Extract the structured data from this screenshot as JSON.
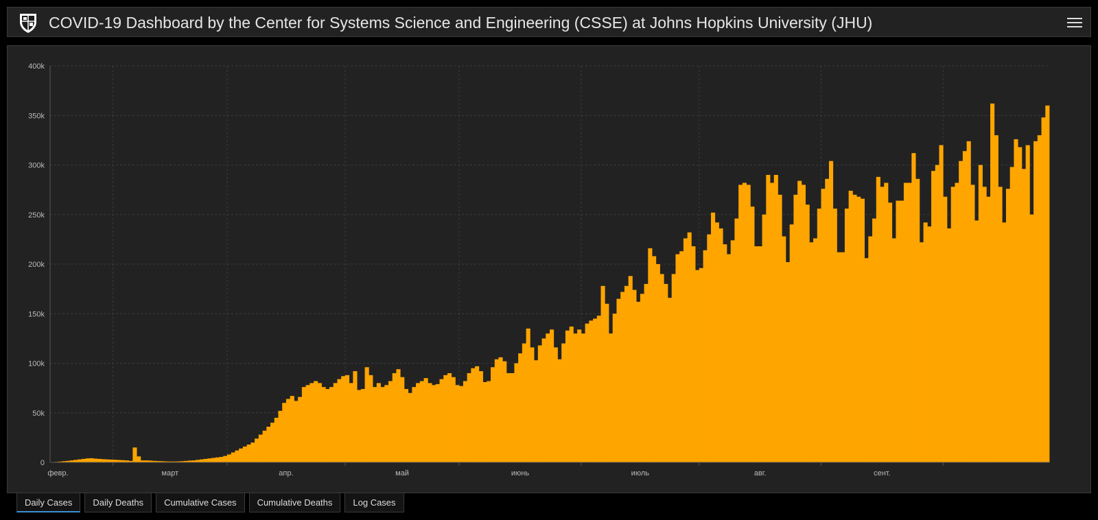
{
  "header": {
    "title": "COVID-19 Dashboard by the Center for Systems Science and Engineering (CSSE) at Johns Hopkins University (JHU)"
  },
  "colors": {
    "bar": "#ffa500",
    "background": "#222222",
    "page": "#000000",
    "grid": "#3c3c3c",
    "axis": "#555555",
    "tick_text": "#bbbbbb",
    "tab_active_underline": "#3c8fd8"
  },
  "icons": {
    "logo": "jhu-shield-icon",
    "menu": "hamburger-menu-icon"
  },
  "tabs": [
    {
      "label": "Daily Cases",
      "active": true
    },
    {
      "label": "Daily Deaths",
      "active": false
    },
    {
      "label": "Cumulative Cases",
      "active": false
    },
    {
      "label": "Cumulative Deaths",
      "active": false
    },
    {
      "label": "Log Cases",
      "active": false
    }
  ],
  "chart_data": {
    "type": "bar",
    "title": "",
    "xlabel": "",
    "ylabel": "",
    "ylim": [
      0,
      400000
    ],
    "y_ticks": [
      0,
      50000,
      100000,
      150000,
      200000,
      250000,
      300000,
      350000,
      400000
    ],
    "y_tick_labels": [
      "0",
      "50k",
      "100k",
      "150k",
      "200k",
      "250k",
      "300k",
      "350k",
      "400k"
    ],
    "x_tick_labels": [
      "февр.",
      "март",
      "апр.",
      "май",
      "июнь",
      "июль",
      "авг.",
      "сент."
    ],
    "x_tick_positions": [
      16,
      45,
      75,
      104,
      135,
      165,
      196,
      227
    ],
    "grid": true,
    "legend": "none",
    "series": [
      {
        "values": [
          300,
          500,
          800,
          1200,
          1500,
          2000,
          2500,
          3000,
          3500,
          4000,
          4200,
          3800,
          3500,
          3200,
          3000,
          2800,
          2600,
          2400,
          2200,
          2000,
          1500,
          15000,
          6000,
          2000,
          2000,
          1800,
          1500,
          1300,
          1200,
          1000,
          900,
          900,
          1000,
          1200,
          1500,
          1800,
          2000,
          2500,
          3000,
          3500,
          4000,
          4500,
          5000,
          5500,
          6500,
          8000,
          10000,
          12000,
          14000,
          16000,
          18000,
          20000,
          24000,
          28000,
          32000,
          36000,
          40000,
          45000,
          52000,
          60000,
          64000,
          67000,
          62000,
          66000,
          76000,
          78000,
          80000,
          82000,
          80000,
          76000,
          74000,
          76000,
          80000,
          84000,
          87000,
          88000,
          80000,
          92000,
          73000,
          74000,
          96000,
          88000,
          76000,
          80000,
          76000,
          78000,
          82000,
          90000,
          94000,
          86000,
          74000,
          70000,
          76000,
          80000,
          82000,
          85000,
          80000,
          78000,
          79000,
          84000,
          88000,
          90000,
          86000,
          78000,
          77000,
          82000,
          90000,
          95000,
          97000,
          92000,
          81000,
          82000,
          96000,
          104000,
          106000,
          102000,
          90000,
          90000,
          100000,
          110000,
          120000,
          135000,
          116000,
          103000,
          118000,
          125000,
          130000,
          134000,
          116000,
          104000,
          120000,
          133000,
          137000,
          130000,
          134000,
          130000,
          140000,
          143000,
          145000,
          148000,
          178000,
          160000,
          130000,
          150000,
          165000,
          172000,
          178000,
          188000,
          174000,
          162000,
          170000,
          180000,
          216000,
          208000,
          200000,
          190000,
          180000,
          166000,
          190000,
          210000,
          213000,
          226000,
          232000,
          218000,
          194000,
          196000,
          214000,
          230000,
          252000,
          242000,
          236000,
          220000,
          210000,
          224000,
          246000,
          280000,
          282000,
          280000,
          258000,
          218000,
          218000,
          250000,
          290000,
          282000,
          290000,
          270000,
          228000,
          202000,
          240000,
          270000,
          284000,
          280000,
          260000,
          222000,
          226000,
          256000,
          276000,
          286000,
          304000,
          256000,
          212000,
          212000,
          256000,
          274000,
          270000,
          268000,
          266000,
          206000,
          228000,
          246000,
          288000,
          278000,
          282000,
          262000,
          226000,
          264000,
          264000,
          282000,
          282000,
          312000,
          286000,
          222000,
          242000,
          238000,
          294000,
          300000,
          320000,
          268000,
          236000,
          278000,
          282000,
          304000,
          314000,
          324000,
          280000,
          244000,
          300000,
          278000,
          268000,
          362000,
          330000,
          278000,
          242000,
          276000,
          298000,
          326000,
          318000,
          296000,
          320000,
          250000,
          324000,
          330000,
          348000,
          360000
        ]
      }
    ]
  }
}
